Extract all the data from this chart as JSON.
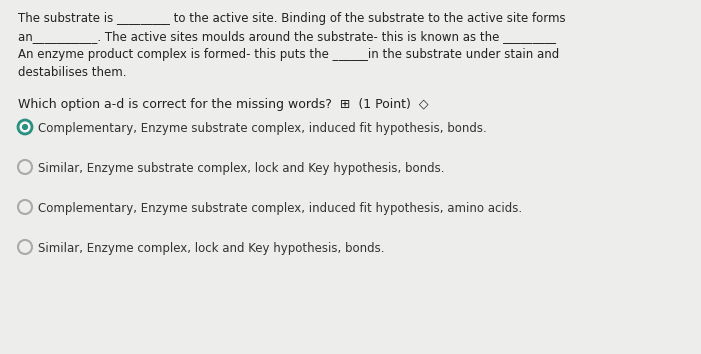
{
  "background_color": "#ededeb",
  "para_line1": "The substrate is _________ to the active site. Binding of the substrate to the active site forms",
  "para_line2": "an___________. The active sites moulds around the substrate- this is known as the _________",
  "para_line3": "An enzyme product complex is formed- this puts the ______in the substrate under stain and",
  "para_line4": "destabilises them.",
  "question_text": "Which option a-d is correct for the missing words?  ⊞  (1 Point)  ◇",
  "options": [
    "Complementary, Enzyme substrate complex, induced fit hypothesis, bonds.",
    "Similar, Enzyme substrate complex, lock and Key hypothesis, bonds.",
    "Complementary, Enzyme substrate complex, induced fit hypothesis, amino acids.",
    "Similar, Enzyme complex, lock and Key hypothesis, bonds."
  ],
  "selected_option": 0,
  "text_color": "#222222",
  "option_text_color": "#333333",
  "circle_outer_color": "#2a9080",
  "circle_fill_color": "#2a9080",
  "circle_empty_color": "#aaaaaa",
  "font_size_para": 8.5,
  "font_size_question": 9.0,
  "font_size_options": 8.5
}
